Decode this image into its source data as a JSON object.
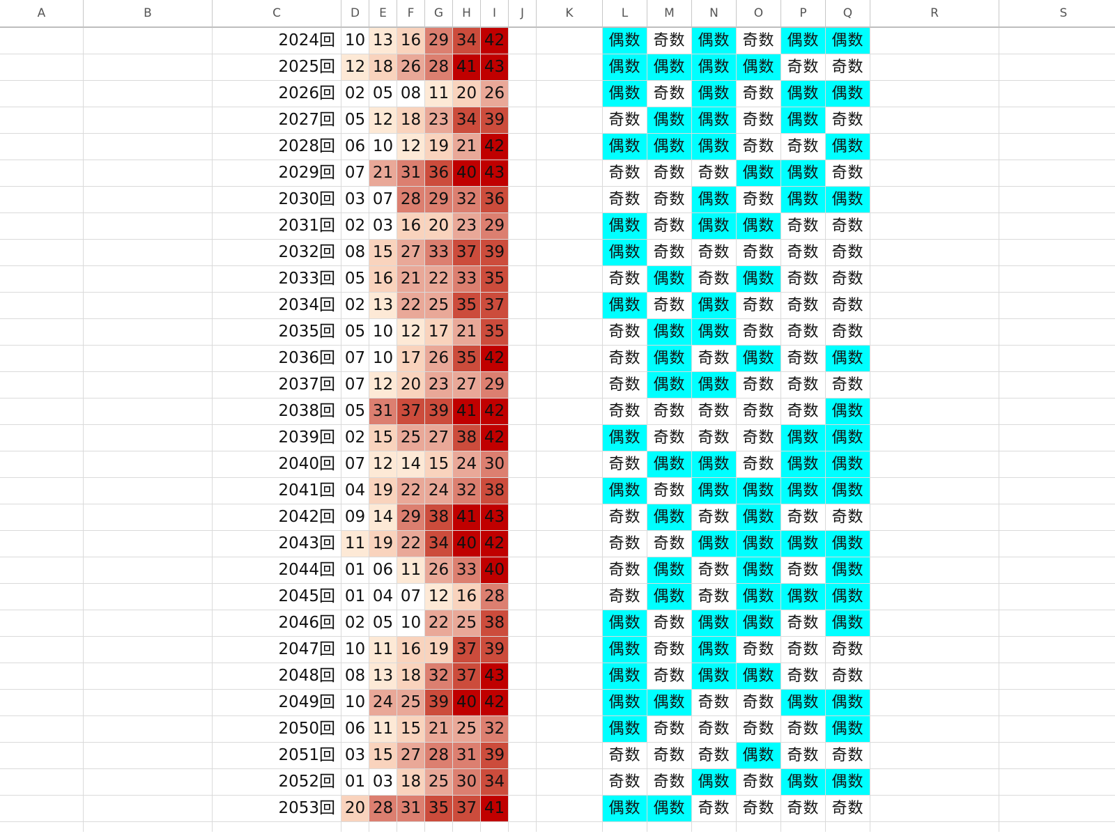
{
  "columns": [
    "A",
    "B",
    "C",
    "D",
    "E",
    "F",
    "G",
    "H",
    "I",
    "J",
    "K",
    "L",
    "M",
    "N",
    "O",
    "P",
    "Q",
    "R",
    "S"
  ],
  "colors": {
    "even": "#00ffff",
    "heat_scale": [
      "#fde9d6",
      "#f9d3bd",
      "#e9a898",
      "#dc7f70",
      "#cc4c3c",
      "#c00000"
    ]
  },
  "parity_labels": {
    "even": "偶数",
    "odd": "奇数"
  },
  "rows": [
    {
      "label": "2024回",
      "nums": [
        "10",
        "13",
        "16",
        "29",
        "34",
        "42"
      ],
      "parity": [
        "偶数",
        "奇数",
        "偶数",
        "奇数",
        "偶数",
        "偶数"
      ]
    },
    {
      "label": "2025回",
      "nums": [
        "12",
        "18",
        "26",
        "28",
        "41",
        "43"
      ],
      "parity": [
        "偶数",
        "偶数",
        "偶数",
        "偶数",
        "奇数",
        "奇数"
      ]
    },
    {
      "label": "2026回",
      "nums": [
        "02",
        "05",
        "08",
        "11",
        "20",
        "26"
      ],
      "parity": [
        "偶数",
        "奇数",
        "偶数",
        "奇数",
        "偶数",
        "偶数"
      ]
    },
    {
      "label": "2027回",
      "nums": [
        "05",
        "12",
        "18",
        "23",
        "34",
        "39"
      ],
      "parity": [
        "奇数",
        "偶数",
        "偶数",
        "奇数",
        "偶数",
        "奇数"
      ]
    },
    {
      "label": "2028回",
      "nums": [
        "06",
        "10",
        "12",
        "19",
        "21",
        "42"
      ],
      "parity": [
        "偶数",
        "偶数",
        "偶数",
        "奇数",
        "奇数",
        "偶数"
      ]
    },
    {
      "label": "2029回",
      "nums": [
        "07",
        "21",
        "31",
        "36",
        "40",
        "43"
      ],
      "parity": [
        "奇数",
        "奇数",
        "奇数",
        "偶数",
        "偶数",
        "奇数"
      ]
    },
    {
      "label": "2030回",
      "nums": [
        "03",
        "07",
        "28",
        "29",
        "32",
        "36"
      ],
      "parity": [
        "奇数",
        "奇数",
        "偶数",
        "奇数",
        "偶数",
        "偶数"
      ]
    },
    {
      "label": "2031回",
      "nums": [
        "02",
        "03",
        "16",
        "20",
        "23",
        "29"
      ],
      "parity": [
        "偶数",
        "奇数",
        "偶数",
        "偶数",
        "奇数",
        "奇数"
      ]
    },
    {
      "label": "2032回",
      "nums": [
        "08",
        "15",
        "27",
        "33",
        "37",
        "39"
      ],
      "parity": [
        "偶数",
        "奇数",
        "奇数",
        "奇数",
        "奇数",
        "奇数"
      ]
    },
    {
      "label": "2033回",
      "nums": [
        "05",
        "16",
        "21",
        "22",
        "33",
        "35"
      ],
      "parity": [
        "奇数",
        "偶数",
        "奇数",
        "偶数",
        "奇数",
        "奇数"
      ]
    },
    {
      "label": "2034回",
      "nums": [
        "02",
        "13",
        "22",
        "25",
        "35",
        "37"
      ],
      "parity": [
        "偶数",
        "奇数",
        "偶数",
        "奇数",
        "奇数",
        "奇数"
      ]
    },
    {
      "label": "2035回",
      "nums": [
        "05",
        "10",
        "12",
        "17",
        "21",
        "35"
      ],
      "parity": [
        "奇数",
        "偶数",
        "偶数",
        "奇数",
        "奇数",
        "奇数"
      ]
    },
    {
      "label": "2036回",
      "nums": [
        "07",
        "10",
        "17",
        "26",
        "35",
        "42"
      ],
      "parity": [
        "奇数",
        "偶数",
        "奇数",
        "偶数",
        "奇数",
        "偶数"
      ]
    },
    {
      "label": "2037回",
      "nums": [
        "07",
        "12",
        "20",
        "23",
        "27",
        "29"
      ],
      "parity": [
        "奇数",
        "偶数",
        "偶数",
        "奇数",
        "奇数",
        "奇数"
      ]
    },
    {
      "label": "2038回",
      "nums": [
        "05",
        "31",
        "37",
        "39",
        "41",
        "42"
      ],
      "parity": [
        "奇数",
        "奇数",
        "奇数",
        "奇数",
        "奇数",
        "偶数"
      ]
    },
    {
      "label": "2039回",
      "nums": [
        "02",
        "15",
        "25",
        "27",
        "38",
        "42"
      ],
      "parity": [
        "偶数",
        "奇数",
        "奇数",
        "奇数",
        "偶数",
        "偶数"
      ]
    },
    {
      "label": "2040回",
      "nums": [
        "07",
        "12",
        "14",
        "15",
        "24",
        "30"
      ],
      "parity": [
        "奇数",
        "偶数",
        "偶数",
        "奇数",
        "偶数",
        "偶数"
      ]
    },
    {
      "label": "2041回",
      "nums": [
        "04",
        "19",
        "22",
        "24",
        "32",
        "38"
      ],
      "parity": [
        "偶数",
        "奇数",
        "偶数",
        "偶数",
        "偶数",
        "偶数"
      ]
    },
    {
      "label": "2042回",
      "nums": [
        "09",
        "14",
        "29",
        "38",
        "41",
        "43"
      ],
      "parity": [
        "奇数",
        "偶数",
        "奇数",
        "偶数",
        "奇数",
        "奇数"
      ]
    },
    {
      "label": "2043回",
      "nums": [
        "11",
        "19",
        "22",
        "34",
        "40",
        "42"
      ],
      "parity": [
        "奇数",
        "奇数",
        "偶数",
        "偶数",
        "偶数",
        "偶数"
      ]
    },
    {
      "label": "2044回",
      "nums": [
        "01",
        "06",
        "11",
        "26",
        "33",
        "40"
      ],
      "parity": [
        "奇数",
        "偶数",
        "奇数",
        "偶数",
        "奇数",
        "偶数"
      ]
    },
    {
      "label": "2045回",
      "nums": [
        "01",
        "04",
        "07",
        "12",
        "16",
        "28"
      ],
      "parity": [
        "奇数",
        "偶数",
        "奇数",
        "偶数",
        "偶数",
        "偶数"
      ]
    },
    {
      "label": "2046回",
      "nums": [
        "02",
        "05",
        "10",
        "22",
        "25",
        "38"
      ],
      "parity": [
        "偶数",
        "奇数",
        "偶数",
        "偶数",
        "奇数",
        "偶数"
      ]
    },
    {
      "label": "2047回",
      "nums": [
        "10",
        "11",
        "16",
        "19",
        "37",
        "39"
      ],
      "parity": [
        "偶数",
        "奇数",
        "偶数",
        "奇数",
        "奇数",
        "奇数"
      ]
    },
    {
      "label": "2048回",
      "nums": [
        "08",
        "13",
        "18",
        "32",
        "37",
        "43"
      ],
      "parity": [
        "偶数",
        "奇数",
        "偶数",
        "偶数",
        "奇数",
        "奇数"
      ]
    },
    {
      "label": "2049回",
      "nums": [
        "10",
        "24",
        "25",
        "39",
        "40",
        "42"
      ],
      "parity": [
        "偶数",
        "偶数",
        "奇数",
        "奇数",
        "偶数",
        "偶数"
      ]
    },
    {
      "label": "2050回",
      "nums": [
        "06",
        "11",
        "15",
        "21",
        "25",
        "32"
      ],
      "parity": [
        "偶数",
        "奇数",
        "奇数",
        "奇数",
        "奇数",
        "偶数"
      ]
    },
    {
      "label": "2051回",
      "nums": [
        "03",
        "15",
        "27",
        "28",
        "31",
        "39"
      ],
      "parity": [
        "奇数",
        "奇数",
        "奇数",
        "偶数",
        "奇数",
        "奇数"
      ]
    },
    {
      "label": "2052回",
      "nums": [
        "01",
        "03",
        "18",
        "25",
        "30",
        "34"
      ],
      "parity": [
        "奇数",
        "奇数",
        "偶数",
        "奇数",
        "偶数",
        "偶数"
      ]
    },
    {
      "label": "2053回",
      "nums": [
        "20",
        "28",
        "31",
        "35",
        "37",
        "41"
      ],
      "parity": [
        "偶数",
        "偶数",
        "奇数",
        "奇数",
        "奇数",
        "奇数"
      ]
    }
  ]
}
